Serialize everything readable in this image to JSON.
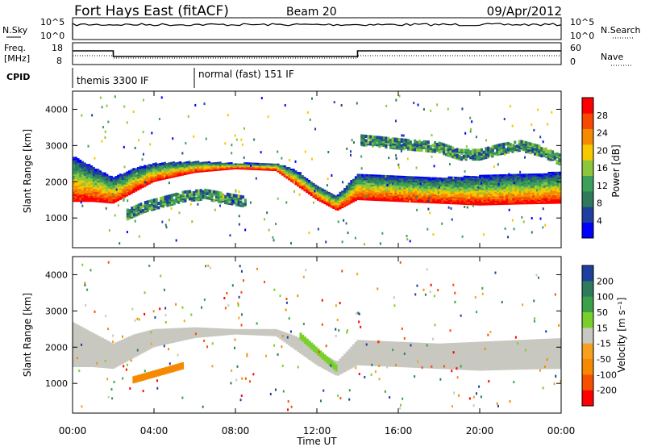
{
  "header": {
    "station": "Fort Hays East (fitACF)",
    "beam": "Beam 20",
    "date": "09/Apr/2012"
  },
  "summary_panel": {
    "nsky_label": "N.Sky",
    "nsearch_label": "N.Search",
    "count_ticks_left": [
      "10^5",
      "10^0"
    ],
    "count_ticks_right": [
      "10^5",
      "10^0"
    ],
    "freq_label_line1": "Freq.",
    "freq_label_line2": "[MHz]",
    "freq_ticks": [
      "18",
      "8"
    ],
    "nave_label": "Nave",
    "nave_ticks": [
      "60",
      "0"
    ],
    "cpid_label": "CPID",
    "cpid_modes": [
      {
        "label": "themis 3300 IF",
        "start_hour": 0,
        "end_hour": 6
      },
      {
        "label": "normal (fast) 151 IF",
        "start_hour": 6,
        "end_hour": 24
      }
    ]
  },
  "colors": {
    "power_scale": [
      "#0000ff",
      "#1f3f9f",
      "#2e7a5a",
      "#3da05a",
      "#8cc63a",
      "#f5c800",
      "#f58a00",
      "#f54a00",
      "#ff0000"
    ],
    "velocity_scale": [
      "#1f3f9f",
      "#2e7a5a",
      "#3aa04a",
      "#7ad02a",
      "#c8c8c0",
      "#f5a020",
      "#f58a00",
      "#f55000",
      "#ff0000"
    ],
    "ground_scatter": "#c8c8c0"
  },
  "chart_data": [
    {
      "type": "heatmap",
      "name": "power",
      "title": "",
      "ylabel": "Slant Range [km]",
      "xlabel": "",
      "x_ticks": [
        "00:00",
        "04:00",
        "08:00",
        "12:00",
        "16:00",
        "20:00",
        "00:00"
      ],
      "y_ticks": [
        1000,
        2000,
        3000,
        4000
      ],
      "xlim_hours": [
        0,
        24
      ],
      "ylim_km": [
        180,
        4500
      ],
      "colorbar": {
        "label": "Power [dB]",
        "ticks": [
          4,
          8,
          12,
          16,
          20,
          24,
          28
        ],
        "range": [
          0,
          32
        ]
      },
      "dominant_band": {
        "hours": [
          0,
          1,
          2,
          3,
          4,
          6,
          8,
          10,
          11,
          12,
          13,
          14,
          16,
          18,
          20,
          22,
          24
        ],
        "upper_km": [
          2700,
          2400,
          2100,
          2350,
          2500,
          2550,
          2500,
          2500,
          2300,
          1900,
          1600,
          2200,
          2150,
          2100,
          2150,
          2200,
          2250
        ],
        "lower_km": [
          1450,
          1450,
          1400,
          1700,
          2000,
          2250,
          2350,
          2300,
          1900,
          1500,
          1200,
          1500,
          1450,
          1400,
          1350,
          1380,
          1400
        ]
      },
      "secondary_bands": [
        {
          "hours": [
            2.7,
            3.5,
            4.5,
            5.5,
            6.5,
            7.5,
            8.5
          ],
          "center_km": [
            1100,
            1300,
            1450,
            1600,
            1650,
            1550,
            1450
          ]
        },
        {
          "hours": [
            14.2,
            16,
            18,
            19,
            20,
            21,
            22,
            23,
            24
          ],
          "center_km": [
            3150,
            3050,
            2950,
            2750,
            2750,
            2900,
            3000,
            2850,
            2600
          ]
        }
      ]
    },
    {
      "type": "heatmap",
      "name": "velocity",
      "title": "",
      "ylabel": "Slant Range [km]",
      "xlabel": "Time UT",
      "x_ticks": [
        "00:00",
        "04:00",
        "08:00",
        "12:00",
        "16:00",
        "20:00",
        "00:00"
      ],
      "y_ticks": [
        1000,
        2000,
        3000,
        4000
      ],
      "xlim_hours": [
        0,
        24
      ],
      "ylim_km": [
        180,
        4500
      ],
      "colorbar": {
        "label": "Velocity [m s⁻¹]",
        "ticks": [
          "200",
          "100",
          "50",
          "15",
          "-15",
          "-50",
          "-100",
          "-200"
        ]
      },
      "features": [
        {
          "kind": "ground_scatter",
          "hours": [
            0,
            2,
            4,
            8,
            10,
            11,
            12,
            13,
            14,
            18,
            22,
            24
          ]
        },
        {
          "kind": "positive_flow",
          "hours": [
            11.2,
            13.0
          ],
          "range_km": [
            1400,
            2300
          ],
          "velocity": 50
        },
        {
          "kind": "negative_flow",
          "hours": [
            3.0,
            5.5
          ],
          "range_km": [
            1100,
            1500
          ],
          "velocity": -50
        }
      ]
    }
  ]
}
